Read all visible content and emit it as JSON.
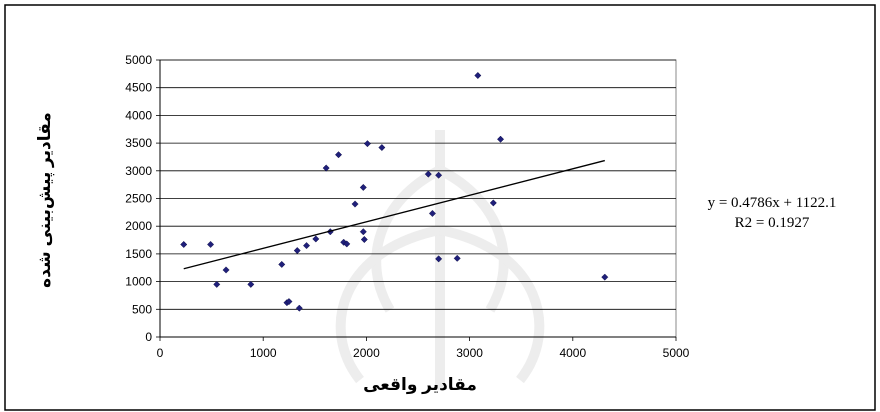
{
  "chart_data": {
    "type": "scatter",
    "title": "",
    "xlabel": "مقادیر واقعی",
    "ylabel": "مقادیر پیش‌بینی شده",
    "xlim": [
      0,
      5000
    ],
    "ylim": [
      0,
      5000
    ],
    "x_ticks": [
      0,
      1000,
      2000,
      3000,
      4000,
      5000
    ],
    "y_ticks": [
      0,
      500,
      1000,
      1500,
      2000,
      2500,
      3000,
      3500,
      4000,
      4500,
      5000
    ],
    "grid": "horizontal",
    "marker_color": "#1f1f7a",
    "points": [
      {
        "x": 230,
        "y": 1670
      },
      {
        "x": 490,
        "y": 1670
      },
      {
        "x": 550,
        "y": 950
      },
      {
        "x": 640,
        "y": 1210
      },
      {
        "x": 880,
        "y": 950
      },
      {
        "x": 1180,
        "y": 1310
      },
      {
        "x": 1230,
        "y": 620
      },
      {
        "x": 1250,
        "y": 640
      },
      {
        "x": 1330,
        "y": 1560
      },
      {
        "x": 1350,
        "y": 520
      },
      {
        "x": 1420,
        "y": 1650
      },
      {
        "x": 1510,
        "y": 1770
      },
      {
        "x": 1610,
        "y": 3050
      },
      {
        "x": 1650,
        "y": 1900
      },
      {
        "x": 1730,
        "y": 3290
      },
      {
        "x": 1780,
        "y": 1710
      },
      {
        "x": 1810,
        "y": 1680
      },
      {
        "x": 1890,
        "y": 2400
      },
      {
        "x": 1970,
        "y": 2700
      },
      {
        "x": 1970,
        "y": 1900
      },
      {
        "x": 1980,
        "y": 1760
      },
      {
        "x": 2010,
        "y": 3490
      },
      {
        "x": 2150,
        "y": 3420
      },
      {
        "x": 2600,
        "y": 2940
      },
      {
        "x": 2640,
        "y": 2230
      },
      {
        "x": 2700,
        "y": 2920
      },
      {
        "x": 2700,
        "y": 1410
      },
      {
        "x": 2880,
        "y": 1420
      },
      {
        "x": 3080,
        "y": 4720
      },
      {
        "x": 3230,
        "y": 2420
      },
      {
        "x": 3300,
        "y": 3570
      },
      {
        "x": 4310,
        "y": 1080
      }
    ],
    "trendline": {
      "slope": 0.4786,
      "intercept": 1122.1,
      "x_range": [
        230,
        4310
      ],
      "equation": "y = 0.4786x + 1122.1",
      "r2": "R2 = 0.1927"
    }
  }
}
